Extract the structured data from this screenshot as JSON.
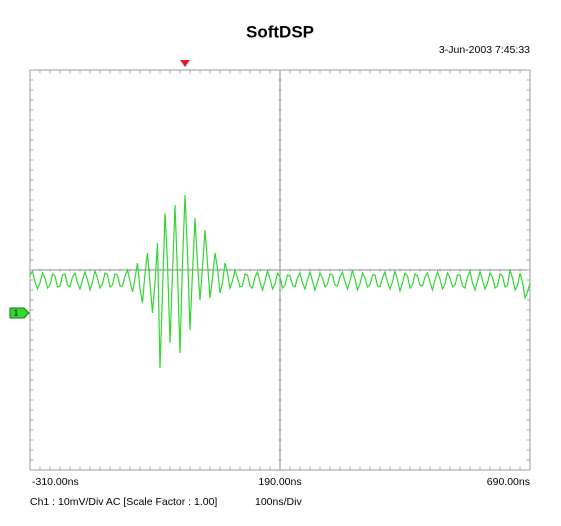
{
  "chart_data": {
    "type": "line",
    "title": "SoftDSP",
    "timestamp": "3-Jun-2003 7:45:33",
    "footer_left": "Ch1 : 10mV/Div  AC  [Scale Factor : 1.00]",
    "footer_right": "100ns/Div",
    "channel_marker": "1",
    "xlim": [
      -310,
      690
    ],
    "ylim": [
      -31.4,
      48.6
    ],
    "xticks": [
      {
        "value": -310,
        "label": "-310.00ns"
      },
      {
        "value": 190,
        "label": "190.00ns"
      },
      {
        "value": 690,
        "label": "690.00ns"
      }
    ],
    "x": [
      -310,
      -305,
      -300,
      -295,
      -290,
      -285,
      -280,
      -275,
      -270,
      -265,
      -260,
      -255,
      -250,
      -245,
      -240,
      -235,
      -230,
      -225,
      -220,
      -215,
      -210,
      -205,
      -200,
      -195,
      -190,
      -185,
      -180,
      -175,
      -170,
      -165,
      -160,
      -155,
      -150,
      -145,
      -140,
      -135,
      -130,
      -125,
      -120,
      -115,
      -110,
      -105,
      -100,
      -95,
      -90,
      -85,
      -80,
      -75,
      -70,
      -65,
      -60,
      -55,
      -50,
      -45,
      -40,
      -35,
      -30,
      -25,
      -20,
      -15,
      -10,
      -5,
      0,
      5,
      10,
      15,
      20,
      25,
      30,
      35,
      40,
      45,
      50,
      55,
      60,
      65,
      70,
      75,
      80,
      85,
      90,
      95,
      100,
      105,
      110,
      115,
      120,
      125,
      130,
      135,
      140,
      145,
      150,
      155,
      160,
      165,
      170,
      175,
      180,
      185,
      190,
      195,
      200,
      205,
      210,
      215,
      220,
      225,
      230,
      235,
      240,
      245,
      250,
      255,
      260,
      265,
      270,
      275,
      280,
      285,
      290,
      295,
      300,
      305,
      310,
      315,
      320,
      325,
      330,
      335,
      340,
      345,
      350,
      355,
      360,
      365,
      370,
      375,
      380,
      385,
      390,
      395,
      400,
      405,
      410,
      415,
      420,
      425,
      430,
      435,
      440,
      445,
      450,
      455,
      460,
      465,
      470,
      475,
      480,
      485,
      490,
      495,
      500,
      505,
      510,
      515,
      520,
      525,
      530,
      535,
      540,
      545,
      550,
      555,
      560,
      565,
      570,
      575,
      580,
      585,
      590,
      595,
      600,
      605,
      610,
      615,
      620,
      625,
      630,
      635,
      640,
      645,
      650,
      655,
      660,
      665,
      670,
      675,
      680,
      685,
      690
    ],
    "series": [
      {
        "name": "Ch1",
        "color": "#33d633",
        "values": [
          7.6,
          8.4,
          6.2,
          4.8,
          6.0,
          8.0,
          7.0,
          5.0,
          5.6,
          7.8,
          7.4,
          5.2,
          5.4,
          7.6,
          7.8,
          5.6,
          5.2,
          7.2,
          8.0,
          6.0,
          4.8,
          6.6,
          8.2,
          6.6,
          4.6,
          6.2,
          8.4,
          7.0,
          5.0,
          5.8,
          8.0,
          7.6,
          5.2,
          5.6,
          7.8,
          7.6,
          5.4,
          5.4,
          7.4,
          8.6,
          6.4,
          4.2,
          7.0,
          10.0,
          5.0,
          2.0,
          8.0,
          12.0,
          6.0,
          0.0,
          6.0,
          14.0,
          -11,
          4,
          20,
          10,
          -6,
          8,
          21.6,
          8,
          -8,
          10,
          23.6,
          12,
          -3.4,
          8,
          19,
          10,
          2.6,
          9,
          16.6,
          10,
          3,
          7,
          12,
          9,
          4,
          6,
          10,
          8,
          5,
          6.4,
          8.6,
          7.0,
          5.2,
          5.4,
          7.8,
          7.6,
          5.4,
          5.0,
          7.2,
          8.2,
          6.2,
          4.6,
          6.4,
          8.4,
          6.8,
          4.8,
          5.8,
          8.0,
          7.2,
          5.0,
          5.6,
          7.6,
          7.4,
          5.6,
          5.2,
          7.0,
          8.0,
          6.0,
          4.8,
          6.6,
          8.2,
          6.4,
          4.6,
          6.2,
          8.0,
          7.0,
          5.2,
          5.8,
          7.8,
          7.6,
          5.6,
          5.4,
          7.2,
          8.2,
          6.2,
          4.8,
          6.4,
          8.6,
          6.8,
          4.6,
          5.8,
          8.0,
          7.0,
          5.2,
          5.6,
          7.6,
          7.6,
          5.4,
          5.2,
          7.0,
          8.2,
          6.2,
          4.8,
          6.2,
          8.4,
          6.6,
          4.4,
          6.0,
          8.0,
          7.4,
          5.0,
          5.6,
          7.8,
          7.4,
          5.6,
          5.4,
          7.2,
          8.0,
          6.2,
          4.6,
          6.6,
          8.2,
          6.8,
          4.8,
          5.8,
          8.0,
          7.0,
          5.2,
          5.6,
          7.6,
          7.6,
          5.4,
          5.0,
          7.2,
          8.4,
          6.0,
          4.6,
          6.4,
          8.2,
          6.6,
          4.8,
          6.0,
          8.0,
          7.2,
          5.0,
          5.4,
          7.8,
          7.4,
          5.2,
          5.6,
          8.6,
          7.0,
          4.6,
          5.4,
          8.0,
          6.2,
          3.0,
          4.2,
          6.0
        ]
      }
    ]
  }
}
